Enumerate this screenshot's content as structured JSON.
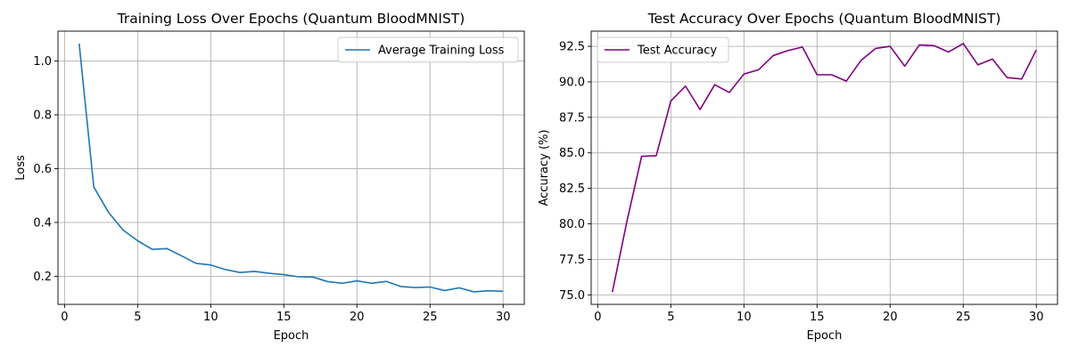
{
  "chart_data": [
    {
      "type": "line",
      "title": "Training Loss Over Epochs (Quantum BloodMNIST)",
      "xlabel": "Epoch",
      "ylabel": "Loss",
      "xlim": [
        -0.45,
        31.45
      ],
      "ylim": [
        0.0955,
        1.111
      ],
      "xticks": [
        0,
        5,
        10,
        15,
        20,
        25,
        30
      ],
      "yticks": [
        0.2,
        0.4,
        0.6,
        0.8,
        1.0
      ],
      "ytick_labels": [
        "0.2",
        "0.4",
        "0.6",
        "0.8",
        "1.0"
      ],
      "grid": true,
      "legend": "upper right",
      "x": [
        1,
        2,
        3,
        4,
        5,
        6,
        7,
        8,
        9,
        10,
        11,
        12,
        13,
        14,
        15,
        16,
        17,
        18,
        19,
        20,
        21,
        22,
        23,
        24,
        25,
        26,
        27,
        28,
        29,
        30
      ],
      "series": [
        {
          "name": "Average Training Loss",
          "color": "#1f77b4",
          "values": [
            1.065,
            0.532,
            0.438,
            0.372,
            0.332,
            0.3,
            0.303,
            0.276,
            0.248,
            0.242,
            0.225,
            0.214,
            0.218,
            0.211,
            0.206,
            0.198,
            0.197,
            0.18,
            0.174,
            0.183,
            0.174,
            0.181,
            0.162,
            0.158,
            0.16,
            0.147,
            0.157,
            0.142,
            0.146,
            0.144
          ]
        }
      ]
    },
    {
      "type": "line",
      "title": "Test Accuracy Over Epochs (Quantum BloodMNIST)",
      "xlabel": "Epoch",
      "ylabel": "Accuracy (%)",
      "xlim": [
        -0.45,
        31.45
      ],
      "ylim": [
        74.33,
        93.57
      ],
      "xticks": [
        0,
        5,
        10,
        15,
        20,
        25,
        30
      ],
      "yticks": [
        75.0,
        77.5,
        80.0,
        82.5,
        85.0,
        87.5,
        90.0,
        92.5
      ],
      "ytick_labels": [
        "75.0",
        "77.5",
        "80.0",
        "82.5",
        "85.0",
        "87.5",
        "90.0",
        "92.5"
      ],
      "grid": true,
      "legend": "upper left",
      "x": [
        1,
        2,
        3,
        4,
        5,
        6,
        7,
        8,
        9,
        10,
        11,
        12,
        13,
        14,
        15,
        16,
        17,
        18,
        19,
        20,
        21,
        22,
        23,
        24,
        25,
        26,
        27,
        28,
        29,
        30
      ],
      "series": [
        {
          "name": "Test Accuracy",
          "color": "#800080",
          "values": [
            75.2,
            80.2,
            84.75,
            84.8,
            88.65,
            89.7,
            88.05,
            89.8,
            89.25,
            90.55,
            90.85,
            91.85,
            92.2,
            92.45,
            90.5,
            90.5,
            90.05,
            91.5,
            92.35,
            92.5,
            91.1,
            92.6,
            92.55,
            92.1,
            92.7,
            91.2,
            91.6,
            90.3,
            90.2,
            92.25
          ]
        }
      ]
    }
  ]
}
